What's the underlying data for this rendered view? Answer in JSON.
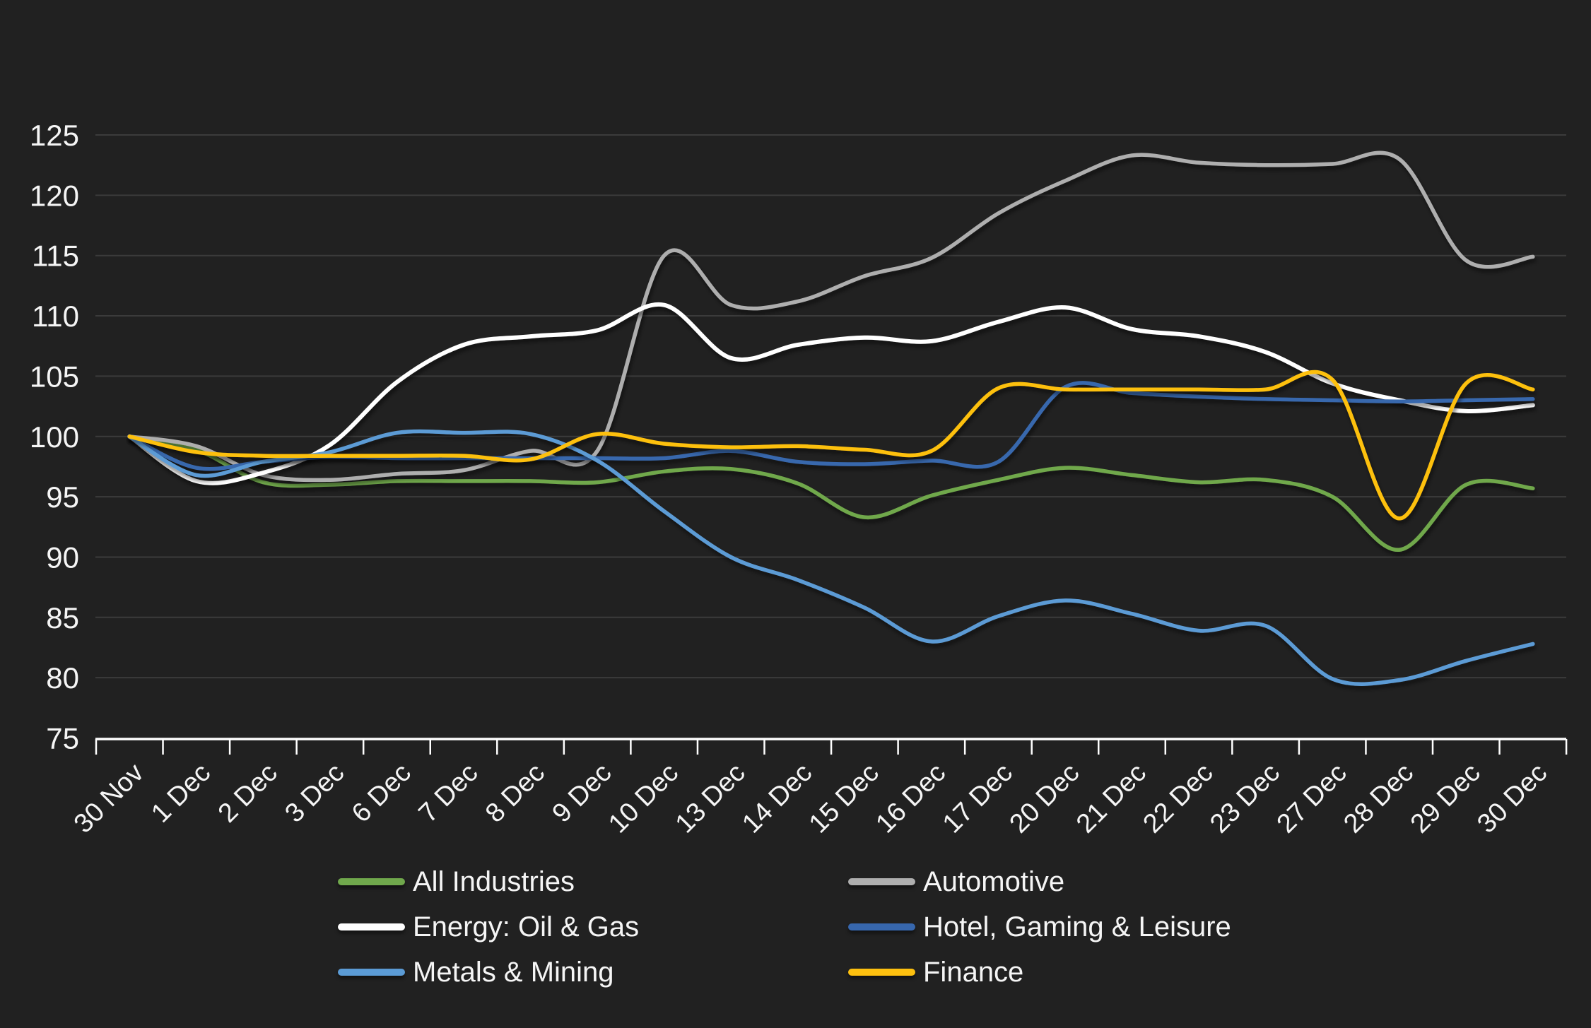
{
  "chart_data": {
    "type": "line",
    "title": "",
    "xlabel": "",
    "ylabel": "",
    "categories": [
      "30 Nov",
      "1 Dec",
      "2 Dec",
      "3 Dec",
      "6 Dec",
      "7 Dec",
      "8 Dec",
      "9 Dec",
      "10 Dec",
      "13 Dec",
      "14 Dec",
      "15 Dec",
      "16 Dec",
      "17 Dec",
      "20 Dec",
      "21 Dec",
      "22 Dec",
      "23 Dec",
      "27 Dec",
      "28 Dec",
      "29 Dec",
      "30 Dec"
    ],
    "series": [
      {
        "name": "All Industries",
        "color": "#70a84c",
        "values": [
          100,
          98.9,
          96.2,
          96.0,
          96.3,
          96.3,
          96.3,
          96.2,
          97.1,
          97.3,
          96.1,
          93.3,
          95.1,
          96.4,
          97.4,
          96.8,
          96.2,
          96.4,
          95.0,
          90.6,
          96.0,
          95.7
        ]
      },
      {
        "name": "Automotive",
        "color": "#aeaeae",
        "values": [
          100,
          99.2,
          96.8,
          96.4,
          96.9,
          97.2,
          98.8,
          98.8,
          115.0,
          110.9,
          111.2,
          113.3,
          114.8,
          118.5,
          121.2,
          123.3,
          122.7,
          122.5,
          122.6,
          123.0,
          114.6,
          114.9
        ]
      },
      {
        "name": "Energy: Oil & Gas",
        "color": "#ffffff",
        "values": [
          100,
          96.3,
          97.0,
          99.3,
          104.5,
          107.6,
          108.3,
          108.8,
          110.9,
          106.5,
          107.6,
          108.2,
          107.9,
          109.5,
          110.7,
          108.9,
          108.3,
          107.0,
          104.4,
          103.0,
          102.1,
          102.6
        ]
      },
      {
        "name": "Hotel, Gaming & Leisure",
        "color": "#3767ad",
        "values": [
          100,
          97.4,
          97.9,
          98.3,
          98.2,
          98.2,
          98.2,
          98.2,
          98.2,
          98.8,
          97.9,
          97.7,
          98.0,
          97.9,
          104.1,
          103.6,
          103.3,
          103.1,
          103.0,
          102.9,
          103.0,
          103.1
        ]
      },
      {
        "name": "Metals & Mining",
        "color": "#5b9bd5",
        "values": [
          100,
          96.8,
          97.9,
          98.7,
          100.3,
          100.3,
          100.2,
          98.0,
          93.8,
          90.0,
          88.1,
          85.8,
          83.0,
          85.1,
          86.4,
          85.3,
          83.9,
          84.3,
          79.9,
          79.8,
          81.4,
          82.8
        ]
      },
      {
        "name": "Finance",
        "color": "#fdc00f",
        "values": [
          100,
          98.7,
          98.4,
          98.4,
          98.4,
          98.4,
          98.1,
          100.2,
          99.4,
          99.1,
          99.2,
          98.9,
          98.8,
          104.0,
          103.9,
          103.9,
          103.9,
          103.9,
          104.7,
          93.2,
          104.4,
          103.9
        ]
      }
    ],
    "ylim": [
      75,
      125
    ],
    "yticks": [
      75,
      80,
      85,
      90,
      95,
      100,
      105,
      110,
      115,
      120,
      125
    ],
    "grid": "horizontal",
    "legend_position": "bottom-center",
    "legend_columns": 2
  },
  "theme": {
    "background": "#212121",
    "gridline_color": "#3b3b3b",
    "axis_color": "#ffffff",
    "text_color": "#f5f5f5"
  }
}
